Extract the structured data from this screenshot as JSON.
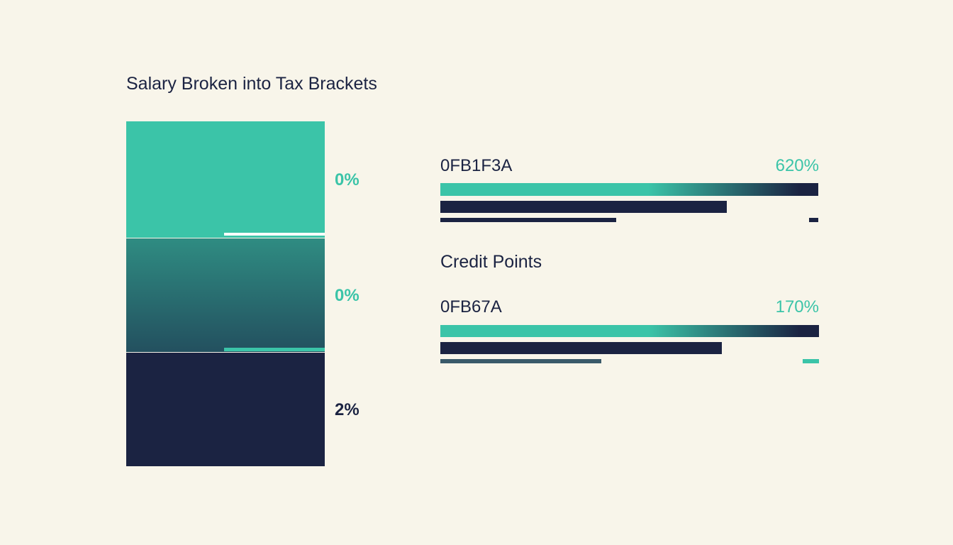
{
  "title": "Salary Broken into Tax Brackets",
  "brackets": [
    {
      "label": "0%"
    },
    {
      "label": "0%"
    },
    {
      "label": "2%"
    }
  ],
  "rows": [
    {
      "code": "0FB1F3A",
      "percent": "620%"
    },
    {
      "code": "0FB67A",
      "percent": "170%"
    }
  ],
  "subtitle": "Credit Points"
}
